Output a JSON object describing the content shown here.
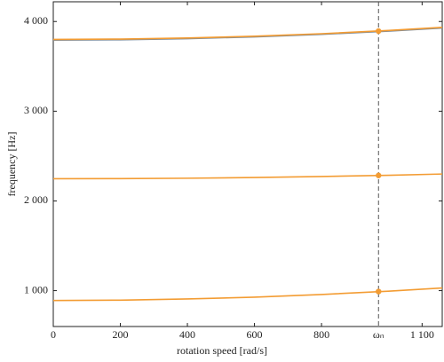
{
  "chart_data": {
    "type": "line",
    "x_label": "rotation speed [rad/s]",
    "y_label": "frequency [Hz]",
    "x": [
      0,
      200,
      400,
      600,
      800,
      1000,
      1160
    ],
    "series": [
      {
        "color": "#7d8b99",
        "values": [
          3793,
          3797,
          3809,
          3829,
          3857,
          3893,
          3928
        ]
      },
      {
        "color": "#f39c33",
        "values": [
          3800,
          3804,
          3816,
          3836,
          3864,
          3900,
          3935
        ]
      },
      {
        "color": "#f39c33",
        "values": [
          2247,
          2249,
          2253,
          2261,
          2272,
          2286,
          2300
        ]
      },
      {
        "color": "#f39c33",
        "values": [
          890,
          894,
          907,
          927,
          957,
          994,
          1030
        ]
      }
    ],
    "markers": {
      "color": "#f39c33",
      "values": [
        990,
        2284,
        3893
      ]
    },
    "vline_color": "#555555",
    "xlim": [
      0,
      1160
    ],
    "ylim": [
      600,
      4220
    ],
    "xticks": [
      0,
      200,
      400,
      600,
      800,
      {
        "value": 1100,
        "label": "1 100"
      },
      {
        "value": 970,
        "label": "ωₙ"
      }
    ],
    "yticks": [
      {
        "value": 1000,
        "label": "1 000"
      },
      {
        "value": 2000,
        "label": "2 000"
      },
      {
        "value": 3000,
        "label": "3 000"
      },
      {
        "value": 4000,
        "label": "4 000"
      }
    ]
  }
}
